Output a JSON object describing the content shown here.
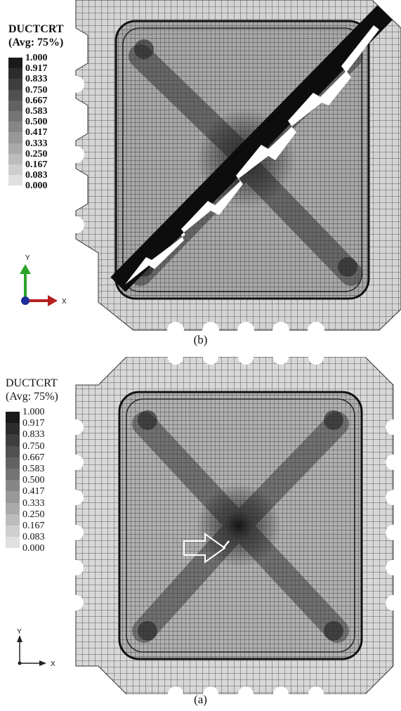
{
  "figure": {
    "panels": [
      {
        "id": "b",
        "caption": "(b)",
        "legend": {
          "title": "DUCTCRT",
          "subtitle": "(Avg: 75%)",
          "ticks": [
            "1.000",
            "0.917",
            "0.833",
            "0.750",
            "0.667",
            "0.583",
            "0.500",
            "0.417",
            "0.333",
            "0.250",
            "0.167",
            "0.083",
            "0.000"
          ],
          "colors": [
            "#1a1a1a",
            "#2c2c2c",
            "#3e3e3e",
            "#505050",
            "#626262",
            "#747474",
            "#868686",
            "#989898",
            "#aaaaaa",
            "#bcbcbc",
            "#cecece",
            "#e0e0e0"
          ]
        },
        "axes": {
          "y_label": "Y",
          "x_label": "X",
          "y_color": "#2aa52a",
          "x_color": "#b32020",
          "origin_color": "#1e2f9a"
        },
        "feature": "diagonal fracture across plate"
      },
      {
        "id": "a",
        "caption": "(a)",
        "legend": {
          "title": "DUCTCRT",
          "subtitle": "(Avg: 75%)",
          "ticks": [
            "1.000",
            "0.917",
            "0.833",
            "0.750",
            "0.667",
            "0.583",
            "0.500",
            "0.417",
            "0.333",
            "0.250",
            "0.167",
            "0.083",
            "0.000"
          ],
          "colors": [
            "#1a1a1a",
            "#2c2c2c",
            "#3e3e3e",
            "#505050",
            "#626262",
            "#747474",
            "#868686",
            "#989898",
            "#aaaaaa",
            "#bcbcbc",
            "#cecece",
            "#e0e0e0"
          ]
        },
        "axes": {
          "y_label": "Y",
          "x_label": "X",
          "y_color": "#222222",
          "x_color": "#222222",
          "origin_color": "#222222"
        },
        "feature": "crack initiation with arrow"
      }
    ]
  }
}
